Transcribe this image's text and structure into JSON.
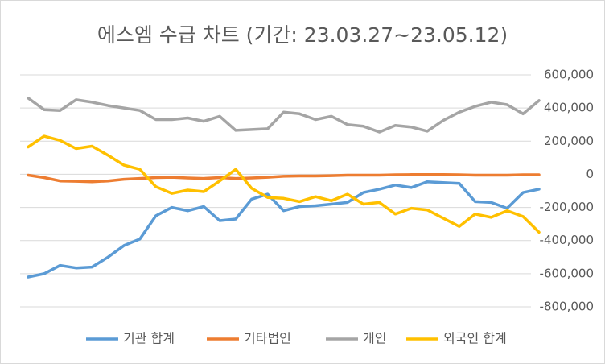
{
  "chart_data": {
    "type": "line",
    "title": "에스엠 수급 차트 (기간: 23.03.27~23.05.12)",
    "ylim": [
      -800000,
      600000
    ],
    "yticks": [
      {
        "value": 600000,
        "label": "600,000"
      },
      {
        "value": 400000,
        "label": "400,000"
      },
      {
        "value": 200000,
        "label": "200,000"
      },
      0,
      {
        "value": -200000,
        "label": "-200,000"
      },
      {
        "value": -400000,
        "label": "-400,000"
      },
      {
        "value": -600000,
        "label": "-600,000"
      },
      {
        "value": -800000,
        "label": "-800,000"
      }
    ],
    "grid": true,
    "legend": "bottom",
    "series": [
      {
        "name": "기관 합계",
        "color": "#5b9bd5",
        "values": [
          -620000,
          -600000,
          -550000,
          -565000,
          -560000,
          -500000,
          -430000,
          -390000,
          -250000,
          -200000,
          -220000,
          -195000,
          -280000,
          -270000,
          -150000,
          -120000,
          -220000,
          -195000,
          -190000,
          -180000,
          -170000,
          -110000,
          -90000,
          -65000,
          -80000,
          -45000,
          -50000,
          -55000,
          -165000,
          -170000,
          -205000,
          -110000,
          -90000
        ]
      },
      {
        "name": "기타법인",
        "color": "#ed7d31",
        "values": [
          -5000,
          -20000,
          -40000,
          -42000,
          -45000,
          -40000,
          -30000,
          -25000,
          -20000,
          -18000,
          -22000,
          -25000,
          -20000,
          -25000,
          -22000,
          -18000,
          -12000,
          -10000,
          -10000,
          -8000,
          -5000,
          -5000,
          -5000,
          -3000,
          -2000,
          -2000,
          -2000,
          -3000,
          -5000,
          -5000,
          -5000,
          -3000,
          -3000
        ]
      },
      {
        "name": "개인",
        "color": "#a5a5a5",
        "values": [
          460000,
          390000,
          385000,
          450000,
          435000,
          415000,
          400000,
          385000,
          330000,
          330000,
          340000,
          320000,
          350000,
          265000,
          270000,
          275000,
          375000,
          365000,
          330000,
          350000,
          300000,
          290000,
          255000,
          295000,
          285000,
          260000,
          325000,
          375000,
          410000,
          435000,
          420000,
          365000,
          445000
        ]
      },
      {
        "name": "외국인 합계",
        "color": "#ffc000",
        "values": [
          165000,
          230000,
          205000,
          155000,
          170000,
          115000,
          55000,
          30000,
          -75000,
          -115000,
          -95000,
          -105000,
          -40000,
          30000,
          -85000,
          -140000,
          -145000,
          -165000,
          -135000,
          -160000,
          -120000,
          -180000,
          -170000,
          -240000,
          -205000,
          -215000,
          -265000,
          -315000,
          -240000,
          -260000,
          -220000,
          -255000,
          -350000
        ]
      }
    ]
  }
}
